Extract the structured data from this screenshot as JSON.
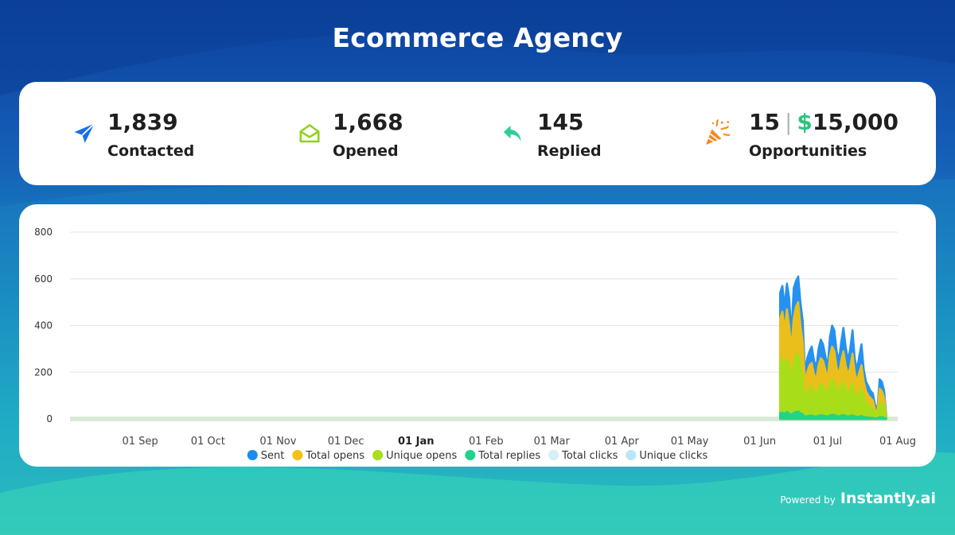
{
  "page": {
    "title": "Ecommerce Agency",
    "footer": {
      "powered_by": "Powered by",
      "brand": "Instantly.ai"
    }
  },
  "stats": [
    {
      "value": "1,839",
      "label": "Contacted",
      "icon": "paper-plane-icon",
      "color": "#1a6fe8"
    },
    {
      "value": "1,668",
      "label": "Opened",
      "icon": "open-envelope-icon",
      "color": "#8fd11c"
    },
    {
      "value": "145",
      "label": "Replied",
      "icon": "reply-arrow-icon",
      "color": "#2ecf96"
    },
    {
      "count": "15",
      "separator": "|",
      "currency": "$",
      "amount": "15,000",
      "label": "Opportunities",
      "icon": "party-popper-icon",
      "color": "#f08a24"
    }
  ],
  "chart_data": {
    "type": "area",
    "x_ticks": [
      "01 Sep",
      "01 Oct",
      "01 Nov",
      "01 Dec",
      "01 Jan",
      "01 Feb",
      "01 Mar",
      "01 Apr",
      "01 May",
      "01 Jun",
      "01 Jul",
      "01 Aug"
    ],
    "bold_tick": "01 Jan",
    "y_ticks": [
      0,
      200,
      400,
      600,
      800
    ],
    "ylim": [
      0,
      800
    ],
    "grid": true,
    "legend_position": "bottom",
    "x_start": "2023-08-01",
    "x_end": "2024-08-01",
    "x": [
      "2024-06-10",
      "2024-06-11",
      "2024-06-12",
      "2024-06-13",
      "2024-06-14",
      "2024-06-15",
      "2024-06-16",
      "2024-06-17",
      "2024-06-18",
      "2024-06-19",
      "2024-06-20",
      "2024-06-21",
      "2024-06-22",
      "2024-06-23",
      "2024-06-24",
      "2024-06-25",
      "2024-06-26",
      "2024-06-27",
      "2024-06-28",
      "2024-06-29",
      "2024-06-30",
      "2024-07-01",
      "2024-07-02",
      "2024-07-03",
      "2024-07-04",
      "2024-07-05",
      "2024-07-06",
      "2024-07-07",
      "2024-07-08",
      "2024-07-09",
      "2024-07-10",
      "2024-07-11",
      "2024-07-12",
      "2024-07-13",
      "2024-07-14",
      "2024-07-15",
      "2024-07-16",
      "2024-07-17",
      "2024-07-18",
      "2024-07-19",
      "2024-07-20",
      "2024-07-21",
      "2024-07-22",
      "2024-07-23",
      "2024-07-24",
      "2024-07-25",
      "2024-07-26",
      "2024-07-27"
    ],
    "series": [
      {
        "name": "Sent",
        "color": "#1b8cf0",
        "values": [
          540,
          570,
          480,
          580,
          520,
          360,
          560,
          590,
          610,
          500,
          420,
          200,
          260,
          290,
          310,
          250,
          220,
          300,
          340,
          320,
          270,
          220,
          350,
          400,
          380,
          290,
          250,
          330,
          390,
          310,
          250,
          300,
          380,
          260,
          210,
          270,
          320,
          210,
          160,
          140,
          120,
          110,
          60,
          40,
          170,
          160,
          120,
          10
        ]
      },
      {
        "name": "Total opens",
        "color": "#f5c211",
        "values": [
          430,
          460,
          380,
          470,
          400,
          300,
          430,
          480,
          500,
          400,
          330,
          160,
          200,
          230,
          240,
          190,
          170,
          230,
          260,
          250,
          210,
          170,
          270,
          310,
          290,
          220,
          190,
          250,
          290,
          230,
          190,
          220,
          280,
          200,
          160,
          200,
          230,
          160,
          120,
          100,
          90,
          80,
          40,
          30,
          130,
          120,
          90,
          5
        ]
      },
      {
        "name": "Unique opens",
        "color": "#a5e019",
        "values": [
          240,
          260,
          220,
          260,
          230,
          170,
          240,
          270,
          280,
          220,
          180,
          90,
          110,
          130,
          140,
          110,
          100,
          130,
          150,
          140,
          120,
          100,
          150,
          170,
          160,
          130,
          110,
          140,
          160,
          130,
          110,
          120,
          150,
          110,
          90,
          110,
          130,
          90,
          70,
          60,
          50,
          45,
          25,
          20,
          70,
          65,
          50,
          3
        ]
      },
      {
        "name": "Total replies",
        "color": "#1fd38b",
        "values": [
          25,
          28,
          22,
          30,
          24,
          18,
          26,
          30,
          32,
          24,
          20,
          10,
          12,
          14,
          15,
          12,
          10,
          14,
          16,
          15,
          13,
          10,
          16,
          18,
          17,
          13,
          11,
          15,
          17,
          14,
          11,
          13,
          16,
          12,
          9,
          11,
          13,
          9,
          7,
          6,
          5,
          5,
          3,
          2,
          8,
          7,
          5,
          1
        ]
      },
      {
        "name": "Total clicks",
        "color": "#d4f0f8",
        "values": [
          0,
          0,
          0,
          0,
          0,
          0,
          0,
          0,
          0,
          0,
          0,
          0,
          0,
          0,
          0,
          0,
          0,
          0,
          0,
          0,
          0,
          0,
          0,
          0,
          0,
          0,
          0,
          0,
          0,
          0,
          0,
          0,
          0,
          0,
          0,
          0,
          0,
          0,
          0,
          0,
          0,
          0,
          0,
          0,
          0,
          0,
          0,
          0
        ]
      },
      {
        "name": "Unique clicks",
        "color": "#b9e6f9",
        "values": [
          0,
          0,
          0,
          0,
          0,
          0,
          0,
          0,
          0,
          0,
          0,
          0,
          0,
          0,
          0,
          0,
          0,
          0,
          0,
          0,
          0,
          0,
          0,
          0,
          0,
          0,
          0,
          0,
          0,
          0,
          0,
          0,
          0,
          0,
          0,
          0,
          0,
          0,
          0,
          0,
          0,
          0,
          0,
          0,
          0,
          0,
          0,
          0
        ]
      }
    ]
  }
}
